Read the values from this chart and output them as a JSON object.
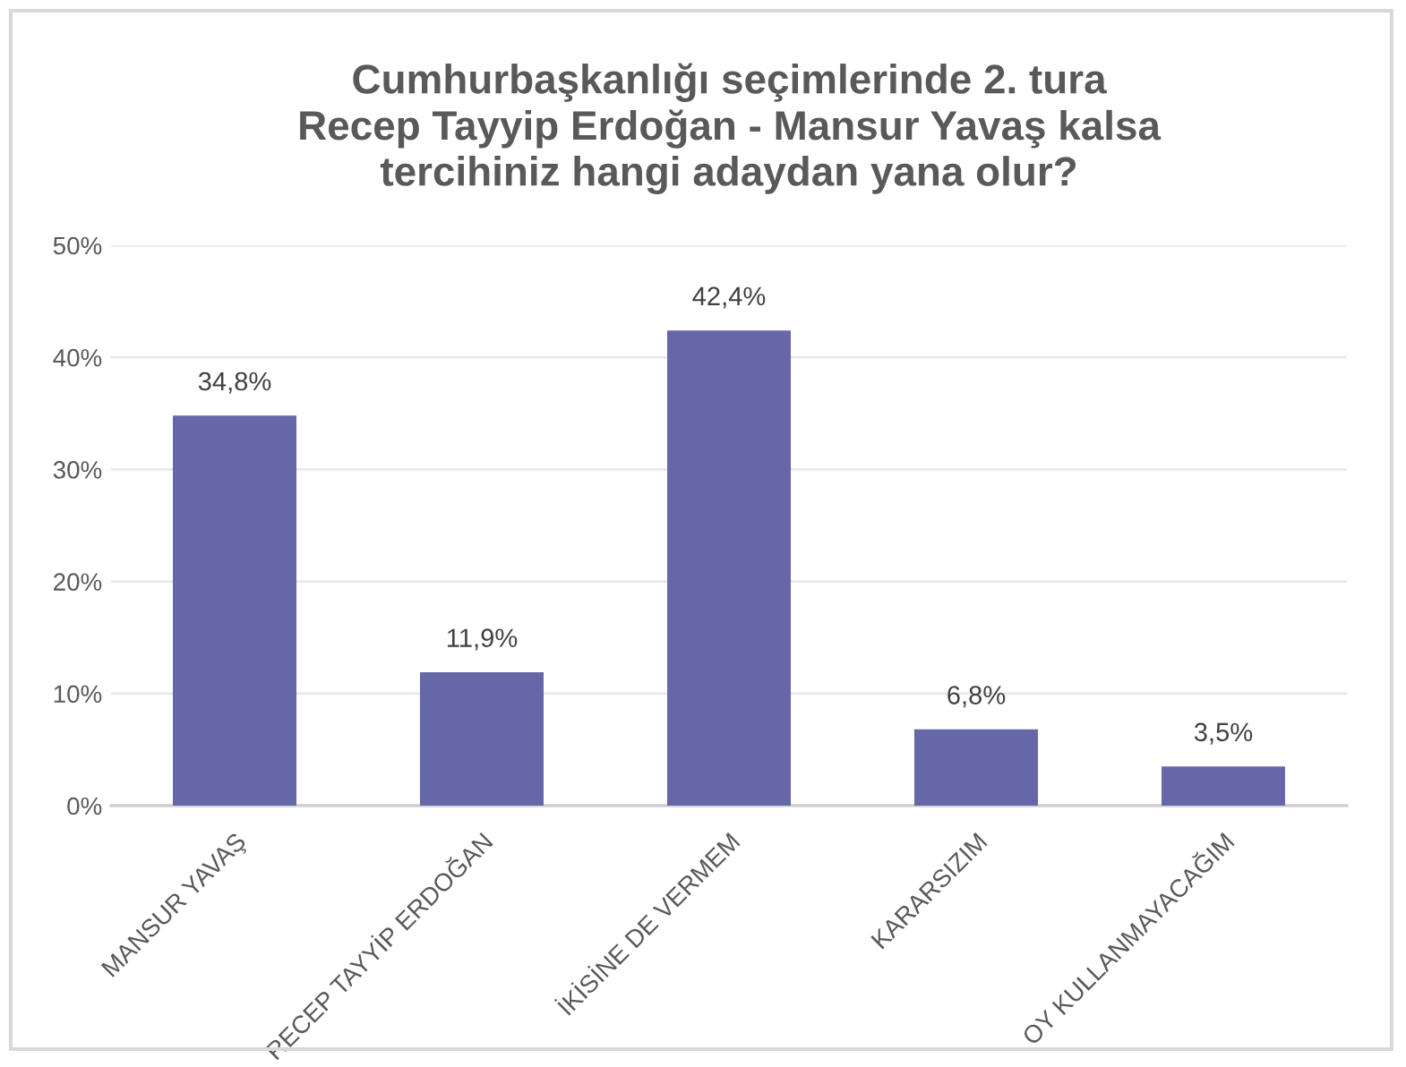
{
  "chart_data": {
    "type": "bar",
    "title": "Cumhurbaşkanlığı seçimlerinde 2. tura\nRecep Tayyip Erdoğan - Mansur Yavaş kalsa\ntercihiniz hangi adaydan yana olur?",
    "categories": [
      "MANSUR YAVAŞ",
      "RECEP TAYYİP ERDOĞAN",
      "İKİSİNE DE VERMEM",
      "KARARSIZIM",
      "OY KULLANMAYACAĞIM"
    ],
    "values": [
      34.8,
      11.9,
      42.4,
      6.8,
      3.5
    ],
    "value_labels": [
      "34,8%",
      "11,9%",
      "42,4%",
      "6,8%",
      "3,5%"
    ],
    "color": "#6667a9",
    "ylim": [
      0,
      50
    ],
    "yticks": [
      {
        "value": 0,
        "label": "0%"
      },
      {
        "value": 10,
        "label": "10%"
      },
      {
        "value": 20,
        "label": "20%"
      },
      {
        "value": 30,
        "label": "30%"
      },
      {
        "value": 40,
        "label": "40%"
      },
      {
        "value": 50,
        "label": "50%"
      }
    ],
    "grid": "y",
    "legend": false
  }
}
